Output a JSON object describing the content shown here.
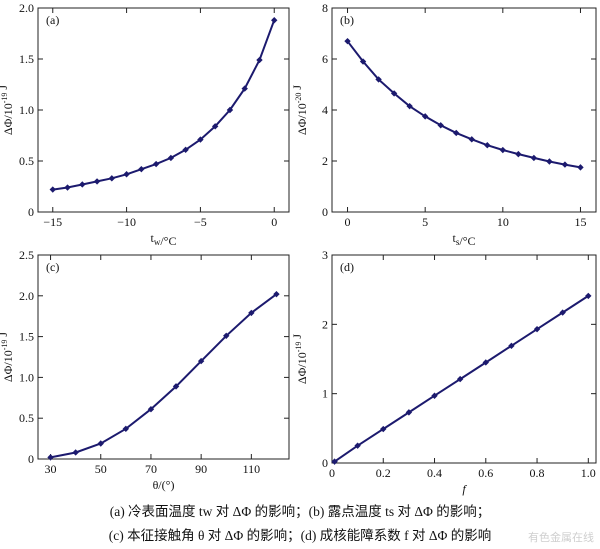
{
  "chart_data": [
    {
      "type": "line",
      "panel": "(a)",
      "xlabel": "t_w/°C",
      "ylabel": "ΔΦ/10^-19 J",
      "xlim": [
        -16,
        1
      ],
      "ylim": [
        0,
        2.0
      ],
      "xticks": [
        -15,
        -10,
        -5,
        0
      ],
      "yticks": [
        0,
        0.5,
        1.0,
        1.5,
        2.0
      ],
      "ytick_labels": [
        "0",
        "0.5",
        "1.0",
        "1.5",
        "2.0"
      ],
      "series": [
        {
          "color": "#1c1a6e",
          "x": [
            -15,
            -14,
            -13,
            -12,
            -11,
            -10,
            -9,
            -8,
            -7,
            -6,
            -5,
            -4,
            -3,
            -2,
            -1,
            0
          ],
          "y": [
            0.22,
            0.24,
            0.27,
            0.3,
            0.33,
            0.37,
            0.42,
            0.47,
            0.53,
            0.61,
            0.71,
            0.84,
            1.0,
            1.21,
            1.49,
            1.88
          ]
        }
      ]
    },
    {
      "type": "line",
      "panel": "(b)",
      "xlabel": "t_s/°C",
      "ylabel": "ΔΦ/10^-20 J",
      "xlim": [
        -1,
        16
      ],
      "ylim": [
        0,
        8
      ],
      "xticks": [
        0,
        5,
        10,
        15
      ],
      "yticks": [
        0,
        2,
        4,
        6,
        8
      ],
      "ytick_labels": [
        "0",
        "2",
        "4",
        "6",
        "8"
      ],
      "series": [
        {
          "color": "#1c1a6e",
          "x": [
            0,
            1,
            2,
            3,
            4,
            5,
            6,
            7,
            8,
            9,
            10,
            11,
            12,
            13,
            14,
            15
          ],
          "y": [
            6.7,
            5.9,
            5.2,
            4.65,
            4.15,
            3.75,
            3.4,
            3.1,
            2.85,
            2.62,
            2.43,
            2.27,
            2.12,
            1.98,
            1.86,
            1.75
          ]
        }
      ]
    },
    {
      "type": "line",
      "panel": "(c)",
      "xlabel": "θ/(°)",
      "ylabel": "ΔΦ/10^-19 J",
      "xlim": [
        25,
        125
      ],
      "ylim": [
        0,
        2.5
      ],
      "xticks": [
        30,
        50,
        70,
        90,
        110
      ],
      "yticks": [
        0,
        0.5,
        1.0,
        1.5,
        2.0,
        2.5
      ],
      "ytick_labels": [
        "0",
        "0.5",
        "1.0",
        "1.5",
        "2.0",
        "2.5"
      ],
      "series": [
        {
          "color": "#1c1a6e",
          "x": [
            30,
            40,
            50,
            60,
            70,
            80,
            90,
            100,
            110,
            120
          ],
          "y": [
            0.02,
            0.08,
            0.19,
            0.37,
            0.61,
            0.89,
            1.2,
            1.51,
            1.79,
            2.02
          ]
        }
      ]
    },
    {
      "type": "line",
      "panel": "(d)",
      "xlabel": "f",
      "ylabel": "ΔΦ/10^-19 J",
      "xlim": [
        0,
        1.03
      ],
      "ylim": [
        0,
        3
      ],
      "xticks": [
        0,
        0.2,
        0.4,
        0.6,
        0.8,
        1.0
      ],
      "xtick_labels": [
        "0",
        "0.2",
        "0.4",
        "0.6",
        "0.8",
        "1.0"
      ],
      "yticks": [
        0,
        1,
        2,
        3
      ],
      "ytick_labels": [
        "0",
        "1",
        "2",
        "3"
      ],
      "series": [
        {
          "color": "#1c1a6e",
          "x": [
            0.01,
            0.1,
            0.2,
            0.3,
            0.4,
            0.5,
            0.6,
            0.7,
            0.8,
            0.9,
            1.0
          ],
          "y": [
            0.02,
            0.25,
            0.49,
            0.73,
            0.97,
            1.21,
            1.45,
            1.69,
            1.93,
            2.17,
            2.41
          ]
        }
      ]
    }
  ],
  "caption": {
    "line1": "(a) 冷表面温度 tw 对 ΔΦ 的影响；(b) 露点温度 ts 对 ΔΦ 的影响；",
    "line2": "(c) 本征接触角 θ 对 ΔΦ 的影响；(d) 成核能障系数 f 对 ΔΦ 的影响"
  },
  "watermark": "有色金属在线"
}
